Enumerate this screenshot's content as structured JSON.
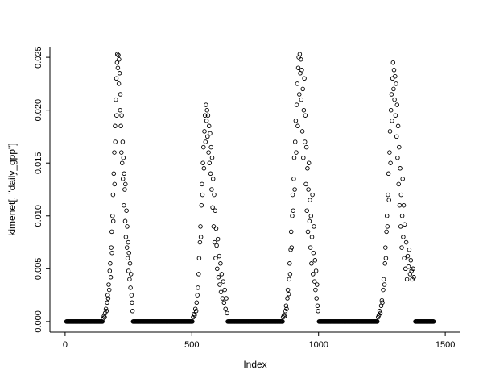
{
  "figure": {
    "background": "#ffffff",
    "frame_color": "#000000"
  },
  "chart_data": {
    "type": "scatter",
    "title": "",
    "xlabel": "Index",
    "ylabel": "kimenet[, \"daily_gpp\"]",
    "xlim": [
      0,
      1500
    ],
    "ylim": [
      0,
      0.025
    ],
    "x_ticks": [
      0,
      500,
      1000,
      1500
    ],
    "x_tick_labels": [
      "0",
      "500",
      "1000",
      "1500"
    ],
    "y_ticks": [
      0,
      0.005,
      0.01,
      0.015,
      0.02,
      0.025
    ],
    "y_tick_labels": [
      "0.000",
      "0.005",
      "0.010",
      "0.015",
      "0.020",
      "0.025"
    ],
    "grid": false,
    "legend": "none",
    "marker": "open-circle",
    "marker_color": "#000000",
    "zero_runs": [
      {
        "from": 5,
        "to": 148,
        "step": 2,
        "y": 0
      },
      {
        "from": 268,
        "to": 502,
        "step": 2,
        "y": 0
      },
      {
        "from": 642,
        "to": 858,
        "step": 2,
        "y": 0
      },
      {
        "from": 1002,
        "to": 1232,
        "step": 2,
        "y": 0
      },
      {
        "from": 1382,
        "to": 1455,
        "step": 2,
        "y": 0
      }
    ],
    "series": [
      {
        "name": "daily_gpp",
        "points": [
          [
            150,
            0.0003
          ],
          [
            153,
            0.0005
          ],
          [
            156,
            0.0004
          ],
          [
            158,
            0.0008
          ],
          [
            161,
            0.0012
          ],
          [
            163,
            0.001
          ],
          [
            166,
            0.0018
          ],
          [
            168,
            0.0025
          ],
          [
            170,
            0.0022
          ],
          [
            172,
            0.0035
          ],
          [
            174,
            0.003
          ],
          [
            176,
            0.0048
          ],
          [
            178,
            0.0055
          ],
          [
            180,
            0.0042
          ],
          [
            182,
            0.007
          ],
          [
            184,
            0.0085
          ],
          [
            185,
            0.0065
          ],
          [
            187,
            0.01
          ],
          [
            189,
            0.012
          ],
          [
            190,
            0.0095
          ],
          [
            192,
            0.014
          ],
          [
            194,
            0.016
          ],
          [
            195,
            0.013
          ],
          [
            197,
            0.0185
          ],
          [
            198,
            0.017
          ],
          [
            200,
            0.021
          ],
          [
            202,
            0.023
          ],
          [
            203,
            0.0195
          ],
          [
            205,
            0.0245
          ],
          [
            206,
            0.0253
          ],
          [
            208,
            0.024
          ],
          [
            210,
            0.0252
          ],
          [
            212,
            0.0225
          ],
          [
            213,
            0.0248
          ],
          [
            215,
            0.0235
          ],
          [
            217,
            0.02
          ],
          [
            218,
            0.0215
          ],
          [
            220,
            0.0185
          ],
          [
            222,
            0.016
          ],
          [
            223,
            0.0195
          ],
          [
            225,
            0.015
          ],
          [
            227,
            0.017
          ],
          [
            228,
            0.0135
          ],
          [
            230,
            0.0155
          ],
          [
            232,
            0.011
          ],
          [
            233,
            0.014
          ],
          [
            235,
            0.0125
          ],
          [
            237,
            0.0095
          ],
          [
            238,
            0.013
          ],
          [
            240,
            0.008
          ],
          [
            242,
            0.0105
          ],
          [
            244,
            0.007
          ],
          [
            245,
            0.009
          ],
          [
            247,
            0.006
          ],
          [
            249,
            0.0075
          ],
          [
            250,
            0.0048
          ],
          [
            252,
            0.0065
          ],
          [
            254,
            0.004
          ],
          [
            256,
            0.0055
          ],
          [
            258,
            0.0032
          ],
          [
            260,
            0.0045
          ],
          [
            262,
            0.0025
          ],
          [
            264,
            0.0018
          ],
          [
            266,
            0.001
          ],
          [
            505,
            0.0004
          ],
          [
            508,
            0.0007
          ],
          [
            511,
            0.0006
          ],
          [
            514,
            0.0012
          ],
          [
            517,
            0.001
          ],
          [
            519,
            0.0018
          ],
          [
            522,
            0.0025
          ],
          [
            524,
            0.0032
          ],
          [
            527,
            0.0045
          ],
          [
            529,
            0.006
          ],
          [
            532,
            0.0075
          ],
          [
            534,
            0.009
          ],
          [
            536,
            0.008
          ],
          [
            538,
            0.011
          ],
          [
            540,
            0.013
          ],
          [
            542,
            0.012
          ],
          [
            544,
            0.015
          ],
          [
            546,
            0.0165
          ],
          [
            548,
            0.0145
          ],
          [
            550,
            0.018
          ],
          [
            552,
            0.0195
          ],
          [
            554,
            0.017
          ],
          [
            556,
            0.0205
          ],
          [
            558,
            0.019
          ],
          [
            560,
            0.02
          ],
          [
            562,
            0.0175
          ],
          [
            564,
            0.0195
          ],
          [
            566,
            0.016
          ],
          [
            568,
            0.0185
          ],
          [
            570,
            0.015
          ],
          [
            572,
            0.0178
          ],
          [
            574,
            0.014
          ],
          [
            576,
            0.0165
          ],
          [
            578,
            0.0125
          ],
          [
            580,
            0.0155
          ],
          [
            582,
            0.0108
          ],
          [
            584,
            0.0135
          ],
          [
            586,
            0.009
          ],
          [
            588,
            0.012
          ],
          [
            590,
            0.0075
          ],
          [
            592,
            0.0105
          ],
          [
            594,
            0.006
          ],
          [
            596,
            0.0088
          ],
          [
            598,
            0.0072
          ],
          [
            600,
            0.005
          ],
          [
            603,
            0.0078
          ],
          [
            605,
            0.0042
          ],
          [
            608,
            0.0062
          ],
          [
            610,
            0.0035
          ],
          [
            613,
            0.0055
          ],
          [
            615,
            0.0028
          ],
          [
            618,
            0.0045
          ],
          [
            621,
            0.0022
          ],
          [
            624,
            0.0038
          ],
          [
            627,
            0.0018
          ],
          [
            630,
            0.003
          ],
          [
            633,
            0.0012
          ],
          [
            636,
            0.0022
          ],
          [
            639,
            0.0008
          ],
          [
            860,
            0.0004
          ],
          [
            863,
            0.0006
          ],
          [
            866,
            0.0005
          ],
          [
            869,
            0.001
          ],
          [
            872,
            0.0015
          ],
          [
            874,
            0.0012
          ],
          [
            877,
            0.0022
          ],
          [
            879,
            0.003
          ],
          [
            882,
            0.0026
          ],
          [
            884,
            0.004
          ],
          [
            886,
            0.0055
          ],
          [
            888,
            0.0045
          ],
          [
            890,
            0.0068
          ],
          [
            892,
            0.0085
          ],
          [
            894,
            0.007
          ],
          [
            896,
            0.01
          ],
          [
            898,
            0.012
          ],
          [
            900,
            0.0105
          ],
          [
            902,
            0.0135
          ],
          [
            904,
            0.0155
          ],
          [
            906,
            0.0125
          ],
          [
            908,
            0.017
          ],
          [
            910,
            0.019
          ],
          [
            912,
            0.016
          ],
          [
            914,
            0.0205
          ],
          [
            916,
            0.0225
          ],
          [
            918,
            0.0185
          ],
          [
            920,
            0.024
          ],
          [
            922,
            0.025
          ],
          [
            924,
            0.0215
          ],
          [
            926,
            0.0253
          ],
          [
            928,
            0.0235
          ],
          [
            930,
            0.0248
          ],
          [
            932,
            0.021
          ],
          [
            934,
            0.0238
          ],
          [
            936,
            0.018
          ],
          [
            938,
            0.022
          ],
          [
            940,
            0.0155
          ],
          [
            942,
            0.02
          ],
          [
            944,
            0.023
          ],
          [
            946,
            0.017
          ],
          [
            948,
            0.0195
          ],
          [
            950,
            0.013
          ],
          [
            952,
            0.0165
          ],
          [
            954,
            0.0105
          ],
          [
            956,
            0.0145
          ],
          [
            958,
            0.0085
          ],
          [
            960,
            0.0125
          ],
          [
            962,
            0.015
          ],
          [
            964,
            0.0095
          ],
          [
            966,
            0.0115
          ],
          [
            968,
            0.007
          ],
          [
            970,
            0.01
          ],
          [
            972,
            0.0055
          ],
          [
            974,
            0.008
          ],
          [
            976,
            0.012
          ],
          [
            978,
            0.0045
          ],
          [
            980,
            0.0065
          ],
          [
            982,
            0.009
          ],
          [
            984,
            0.0038
          ],
          [
            986,
            0.0058
          ],
          [
            988,
            0.003
          ],
          [
            990,
            0.0048
          ],
          [
            992,
            0.0022
          ],
          [
            994,
            0.0035
          ],
          [
            996,
            0.0015
          ],
          [
            998,
            0.001
          ],
          [
            1235,
            0.0004
          ],
          [
            1238,
            0.0006
          ],
          [
            1241,
            0.001
          ],
          [
            1244,
            0.0008
          ],
          [
            1247,
            0.0015
          ],
          [
            1250,
            0.002
          ],
          [
            1252,
            0.0018
          ],
          [
            1255,
            0.003
          ],
          [
            1257,
            0.004
          ],
          [
            1260,
            0.0035
          ],
          [
            1262,
            0.0055
          ],
          [
            1264,
            0.007
          ],
          [
            1266,
            0.006
          ],
          [
            1268,
            0.0085
          ],
          [
            1270,
            0.01
          ],
          [
            1272,
            0.009
          ],
          [
            1274,
            0.012
          ],
          [
            1276,
            0.014
          ],
          [
            1278,
            0.0115
          ],
          [
            1280,
            0.016
          ],
          [
            1282,
            0.018
          ],
          [
            1284,
            0.015
          ],
          [
            1286,
            0.02
          ],
          [
            1288,
            0.0215
          ],
          [
            1290,
            0.019
          ],
          [
            1292,
            0.023
          ],
          [
            1294,
            0.0245
          ],
          [
            1296,
            0.022
          ],
          [
            1298,
            0.0238
          ],
          [
            1300,
            0.021
          ],
          [
            1302,
            0.0232
          ],
          [
            1304,
            0.0195
          ],
          [
            1306,
            0.0225
          ],
          [
            1308,
            0.0175
          ],
          [
            1310,
            0.0205
          ],
          [
            1312,
            0.0155
          ],
          [
            1314,
            0.0185
          ],
          [
            1316,
            0.013
          ],
          [
            1318,
            0.0165
          ],
          [
            1320,
            0.011
          ],
          [
            1322,
            0.0145
          ],
          [
            1324,
            0.009
          ],
          [
            1326,
            0.012
          ],
          [
            1328,
            0.007
          ],
          [
            1330,
            0.01
          ],
          [
            1332,
            0.0135
          ],
          [
            1334,
            0.008
          ],
          [
            1336,
            0.011
          ],
          [
            1338,
            0.006
          ],
          [
            1340,
            0.0092
          ],
          [
            1343,
            0.005
          ],
          [
            1346,
            0.0075
          ],
          [
            1349,
            0.004
          ],
          [
            1352,
            0.0062
          ],
          [
            1355,
            0.0052
          ],
          [
            1358,
            0.0068
          ],
          [
            1361,
            0.0045
          ],
          [
            1364,
            0.0058
          ],
          [
            1367,
            0.0048
          ],
          [
            1370,
            0.004
          ],
          [
            1373,
            0.005
          ],
          [
            1376,
            0.0042
          ]
        ]
      }
    ]
  }
}
